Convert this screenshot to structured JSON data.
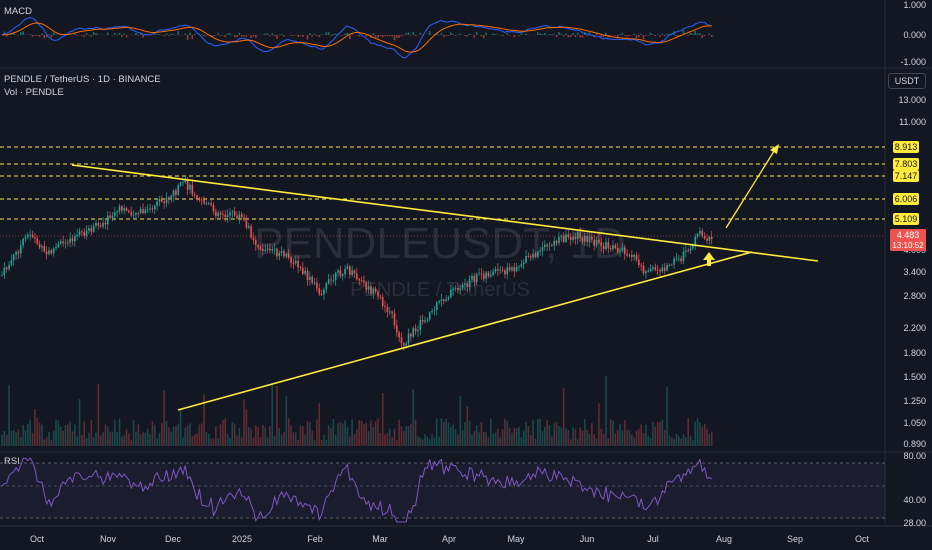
{
  "symbol": {
    "title": "PENDLE / TetherUS · 1D · BINANCE",
    "volume_label": "Vol · PENDLE",
    "watermark_main": "PENDLEUSDT, 1D",
    "watermark_sub": "PENDLE / TetherUS",
    "currency_button": "USDT"
  },
  "macd": {
    "label": "MACD",
    "ticks": [
      "1.000",
      "0.000",
      "-1.000"
    ]
  },
  "rsi": {
    "label": "RSI",
    "ticks": [
      "80.00",
      "40.00",
      "28.00"
    ]
  },
  "price_panel": {
    "ticks": [
      "13.000",
      "11.000",
      "4.000",
      "3.400",
      "2.800",
      "2.200",
      "1.800",
      "1.500",
      "1.250",
      "1.050",
      "0.890"
    ],
    "last_price": "4.483",
    "countdown": "13:10:52",
    "levels": [
      "8.913",
      "7.803",
      "7.147",
      "6.006",
      "5.109"
    ]
  },
  "time_axis": [
    "Oct",
    "Nov",
    "Dec",
    "2025",
    "Feb",
    "Mar",
    "Apr",
    "May",
    "Jun",
    "Jul",
    "Aug",
    "Sep",
    "Oct"
  ],
  "colors": {
    "up": "#26a69a",
    "down": "#ef5350",
    "trendline": "#ffeb3b",
    "macd_line": "#2962ff",
    "signal_line": "#ff6d00",
    "rsi_line": "#7e57c2",
    "level_line": "#ffeb3b"
  },
  "chart_data": {
    "type": "candlestick",
    "symbol": "PENDLEUSDT",
    "interval": "1D",
    "approx_price_path": [
      {
        "x": "Oct",
        "y": 3.5
      },
      {
        "x": "Nov",
        "y": 4.6
      },
      {
        "x": "Dec",
        "y": 7.0
      },
      {
        "x": "2025",
        "y": 5.2
      },
      {
        "x": "Feb",
        "y": 3.6
      },
      {
        "x": "Mar",
        "y": 1.9
      },
      {
        "x": "Apr",
        "y": 2.9
      },
      {
        "x": "May",
        "y": 3.7
      },
      {
        "x": "Jun",
        "y": 3.5
      },
      {
        "x": "Jul",
        "y": 3.3
      },
      {
        "x": "Aug",
        "y": 4.5
      }
    ],
    "price_levels": [
      8.913,
      7.803,
      7.147,
      6.006,
      5.109
    ],
    "last_price": 4.483
  }
}
